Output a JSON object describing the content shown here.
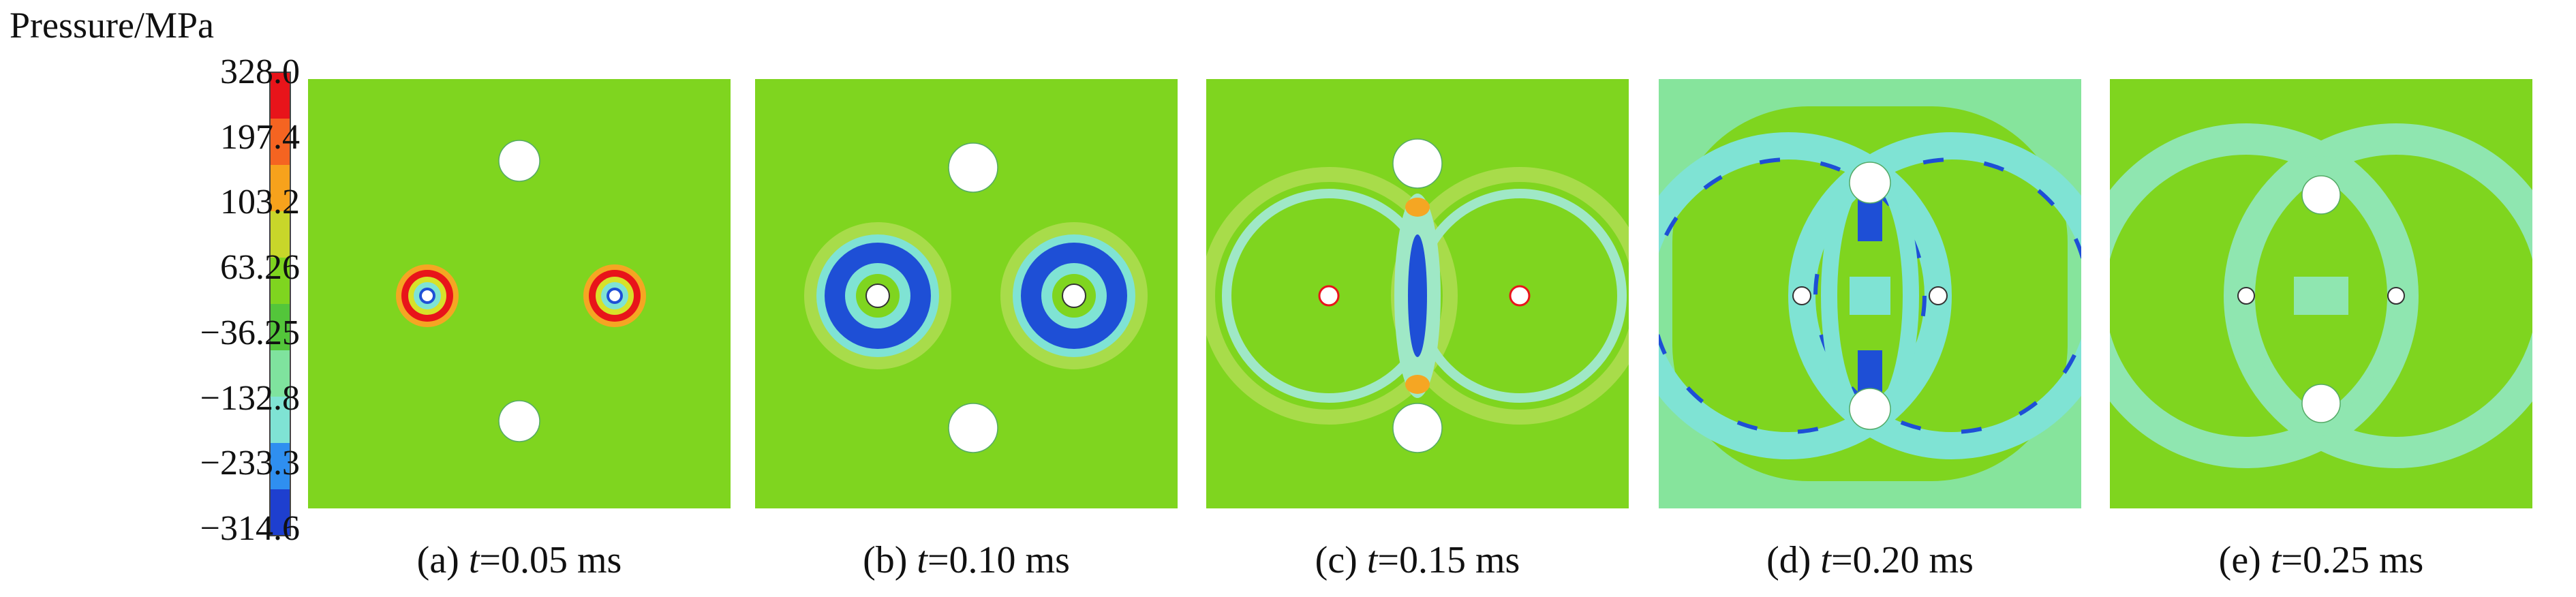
{
  "legend": {
    "title": "Pressure/MPa",
    "ticks": [
      "328.0",
      "197.4",
      "103.2",
      "63.26",
      "−36.25",
      "−132.8",
      "−233.3",
      "−314.6"
    ],
    "colors": [
      "#e8141a",
      "#f56421",
      "#f7a21c",
      "#c8d62a",
      "#7fd51f",
      "#53c63a",
      "#7fe39e",
      "#7fe3d4",
      "#2f8ff0",
      "#1e3fcf"
    ]
  },
  "panels": [
    {
      "label": "(a)",
      "tvar": "t",
      "tval": "=0.05 ms",
      "bg": "#7fd51f"
    },
    {
      "label": "(b)",
      "tvar": "t",
      "tval": "=0.10 ms",
      "bg": "#7fd51f"
    },
    {
      "label": "(c)",
      "tvar": "t",
      "tval": "=0.15 ms",
      "bg": "#7fd51f"
    },
    {
      "label": "(d)",
      "tvar": "t",
      "tval": "=0.20 ms",
      "bg": "#86e49c"
    },
    {
      "label": "(e)",
      "tvar": "t",
      "tval": "=0.25 ms",
      "bg": "#7fd51f"
    }
  ]
}
